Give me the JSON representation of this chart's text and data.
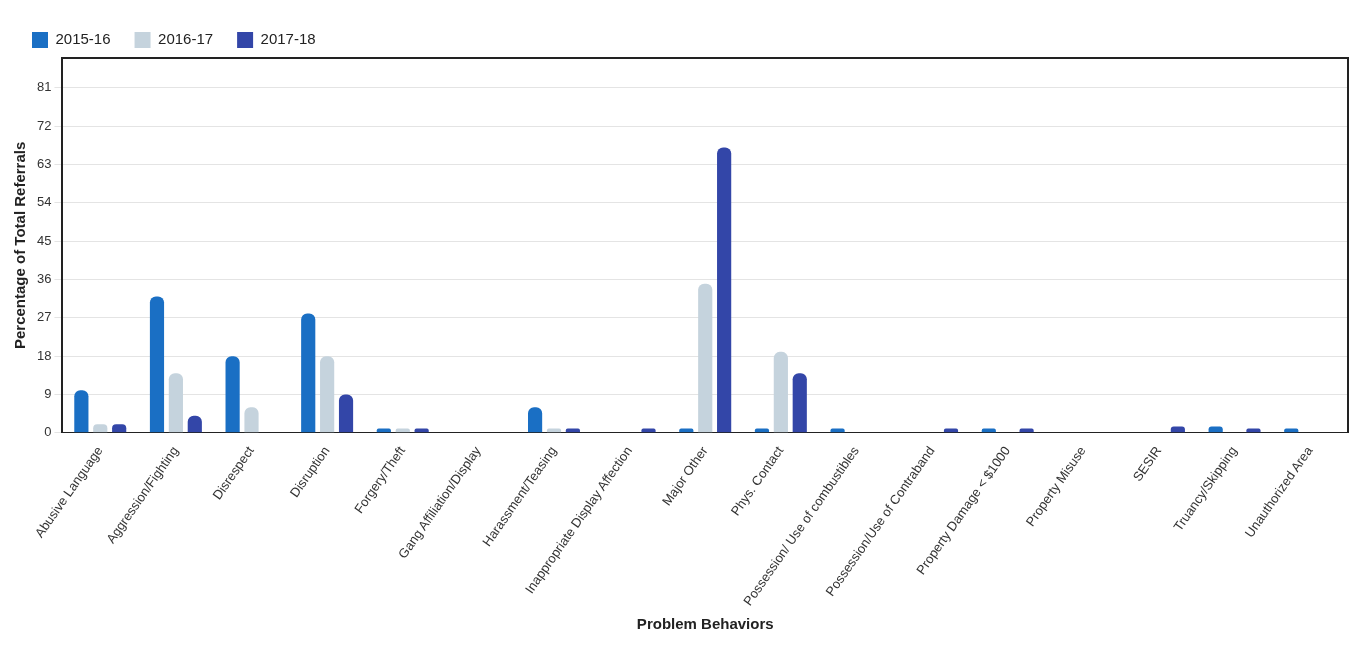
{
  "chart_data": {
    "type": "bar",
    "xlabel": "Problem Behaviors",
    "ylabel": "Percentage of Total Referrals",
    "categories": [
      "Abusive Language",
      "Aggression/Fighting",
      "Disrespect",
      "Disruption",
      "Forgery/Theft",
      "Gang Affiliation/Display",
      "Harassment/Teasing",
      "Inappropriate Display Affection",
      "Major Other",
      "Phys. Contact",
      "Possession/ Use of combustibles",
      "Possession/Use of Contraband",
      "Property Damage < $1000",
      "Property Misuse",
      "SESIR",
      "Truancy/Skipping",
      "Unauthorized Area"
    ],
    "series": [
      {
        "name": "2015-16",
        "color": "#1a6fc4",
        "values": [
          10,
          32,
          18,
          28,
          1,
          0,
          6,
          0,
          1,
          1,
          1,
          0,
          1,
          0,
          0,
          1.5,
          1
        ]
      },
      {
        "name": "2016-17",
        "color": "#c5d3dd",
        "values": [
          2,
          14,
          6,
          18,
          1,
          0,
          1,
          0,
          35,
          19,
          0,
          0,
          0,
          0,
          0,
          0,
          0
        ]
      },
      {
        "name": "2017-18",
        "color": "#3346a8",
        "values": [
          2,
          4,
          0,
          9,
          1,
          0,
          1,
          1,
          67,
          14,
          0,
          1,
          1,
          0,
          1.5,
          1,
          0
        ]
      }
    ],
    "ylim": [
      0,
      88
    ],
    "yticks": [
      0,
      9,
      18,
      27,
      36,
      45,
      54,
      63,
      72,
      81
    ],
    "grid": "y",
    "legend": "top left"
  }
}
